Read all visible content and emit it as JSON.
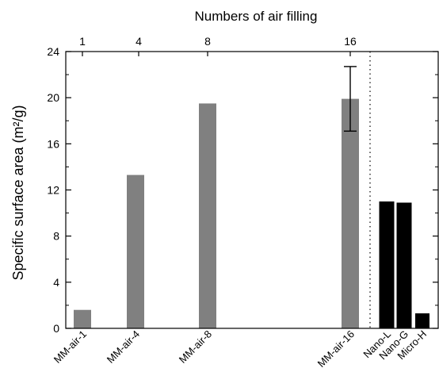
{
  "chart_data": {
    "type": "bar",
    "title": "",
    "top_axis_label": "Numbers of air filling",
    "top_ticks": [
      "1",
      "4",
      "8",
      "16"
    ],
    "ylabel": "Specific surface area (m²/g)",
    "ylim": [
      0,
      24
    ],
    "yticks": [
      "0",
      "4",
      "8",
      "12",
      "16",
      "20",
      "24"
    ],
    "grid": false,
    "categories": [
      "MM-air-1",
      "MM-air-4",
      "MM-air-8",
      "MM-air-16",
      "Nano-L",
      "Nano-G",
      "Micro-H"
    ],
    "values": [
      1.6,
      13.3,
      19.5,
      19.9,
      11.0,
      10.9,
      1.3
    ],
    "error": [
      null,
      null,
      null,
      2.8,
      null,
      null,
      null
    ],
    "bar_colors": [
      "#808080",
      "#808080",
      "#808080",
      "#808080",
      "#000000",
      "#000000",
      "#000000"
    ]
  }
}
